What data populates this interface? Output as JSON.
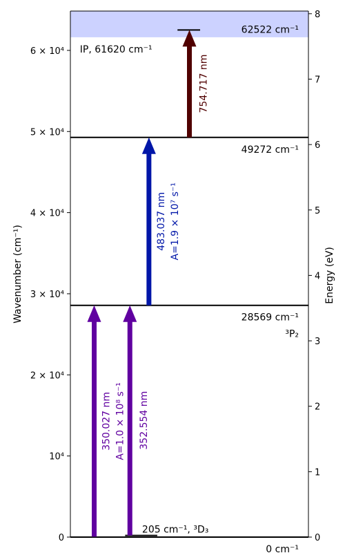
{
  "chart_data": {
    "type": "energy-level-diagram",
    "left_axis": {
      "label": "Wavenumber (cm⁻¹)",
      "unit": "cm^-1",
      "range": [
        0,
        64850
      ],
      "ticks": [
        {
          "value": 0,
          "label": "0"
        },
        {
          "value": 10000,
          "label": "10⁴"
        },
        {
          "value": 20000,
          "label": "2 × 10⁴"
        },
        {
          "value": 30000,
          "label": "3 × 10⁴"
        },
        {
          "value": 40000,
          "label": "4 × 10⁴"
        },
        {
          "value": 50000,
          "label": "5 × 10⁴"
        },
        {
          "value": 60000,
          "label": "6 × 10⁴"
        }
      ]
    },
    "right_axis": {
      "label": "Energy (eV)",
      "unit": "eV",
      "ticks": [
        {
          "value": 0,
          "label": "0"
        },
        {
          "value": 1,
          "label": "1"
        },
        {
          "value": 2,
          "label": "2"
        },
        {
          "value": 3,
          "label": "3"
        },
        {
          "value": 4,
          "label": "4"
        },
        {
          "value": 5,
          "label": "5"
        },
        {
          "value": 6,
          "label": "6"
        },
        {
          "value": 7,
          "label": "7"
        },
        {
          "value": 8,
          "label": "8"
        }
      ]
    },
    "ionization": {
      "value": 61620,
      "label": "IP, 61620 cm⁻¹",
      "color": "#ccd2ff"
    },
    "levels": [
      {
        "value": 0,
        "label": "0 cm⁻¹",
        "term": "",
        "full_width": true
      },
      {
        "value": 205,
        "label": "205 cm⁻¹, ³D₃",
        "term": "",
        "full_width": false
      },
      {
        "value": 28569,
        "label": "28569 cm⁻¹",
        "term": "³P₂",
        "full_width": true
      },
      {
        "value": 49272,
        "label": "49272 cm⁻¹",
        "term": "",
        "full_width": true
      },
      {
        "value": 62522,
        "label": "62522 cm⁻¹",
        "term": "",
        "full_width": false
      }
    ],
    "transitions": [
      {
        "from": 0,
        "to": 28569,
        "wavelength": "350.027 nm",
        "rate": "A=1.0 × 10⁸ s⁻¹",
        "color": "#6000a0"
      },
      {
        "from": 205,
        "to": 28569,
        "wavelength": "352.554 nm",
        "rate": "",
        "color": "#6000a0"
      },
      {
        "from": 28569,
        "to": 49272,
        "wavelength": "483.037 nm",
        "rate": "A=1.9 × 10⁷ s⁻¹",
        "color": "#0016a8"
      },
      {
        "from": 49272,
        "to": 62522,
        "wavelength": "754.717 nm",
        "rate": "",
        "color": "#500000"
      }
    ]
  }
}
